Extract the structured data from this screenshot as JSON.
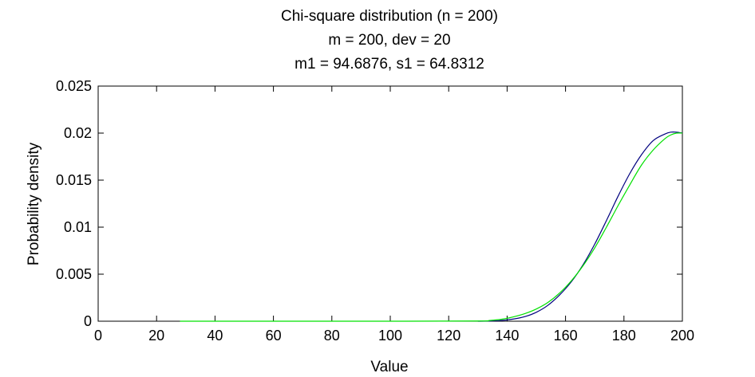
{
  "chart_data": {
    "type": "line",
    "title": [
      "Chi-square distribution (n = 200)",
      "m = 200, dev = 20",
      "m1 = 94.6876, s1 = 64.8312"
    ],
    "xlabel": "Value",
    "ylabel": "Probability density",
    "xlim": [
      0,
      200
    ],
    "ylim": [
      0,
      0.025
    ],
    "x_ticks": [
      0,
      20,
      40,
      60,
      80,
      100,
      120,
      140,
      160,
      180,
      200
    ],
    "x_tick_labels": [
      "0",
      "20",
      "40",
      "60",
      "80",
      "100",
      "120",
      "140",
      "160",
      "180",
      "200"
    ],
    "y_ticks": [
      0,
      0.005,
      0.01,
      0.015,
      0.02,
      0.025
    ],
    "y_tick_labels": [
      "0",
      "0.005",
      "0.01",
      "0.015",
      "0.02",
      "0.025"
    ],
    "grid": false,
    "legend": "none",
    "series": [
      {
        "color": "#00007f",
        "x": [
          130,
          134,
          138,
          142,
          146,
          150,
          154,
          158,
          162,
          166,
          170,
          174,
          178,
          182,
          186,
          190,
          194,
          196,
          198,
          200
        ],
        "y": [
          0.0,
          2e-05,
          8e-05,
          0.00022,
          0.00048,
          0.00095,
          0.0017,
          0.0028,
          0.0042,
          0.006,
          0.0082,
          0.0107,
          0.0133,
          0.0157,
          0.0177,
          0.0192,
          0.0199,
          0.0201,
          0.0201,
          0.02
        ]
      },
      {
        "color": "#00e000",
        "x": [
          28,
          60,
          100,
          130,
          134,
          138,
          142,
          146,
          150,
          154,
          158,
          162,
          166,
          170,
          174,
          178,
          182,
          186,
          190,
          194,
          196,
          198,
          200
        ],
        "y": [
          0.0,
          0.0,
          0.0,
          2e-05,
          8e-05,
          0.0002,
          0.00045,
          0.0008,
          0.0013,
          0.002,
          0.003,
          0.0043,
          0.0059,
          0.0078,
          0.01,
          0.0123,
          0.0145,
          0.0166,
          0.0182,
          0.0194,
          0.0198,
          0.02,
          0.02
        ]
      }
    ]
  }
}
